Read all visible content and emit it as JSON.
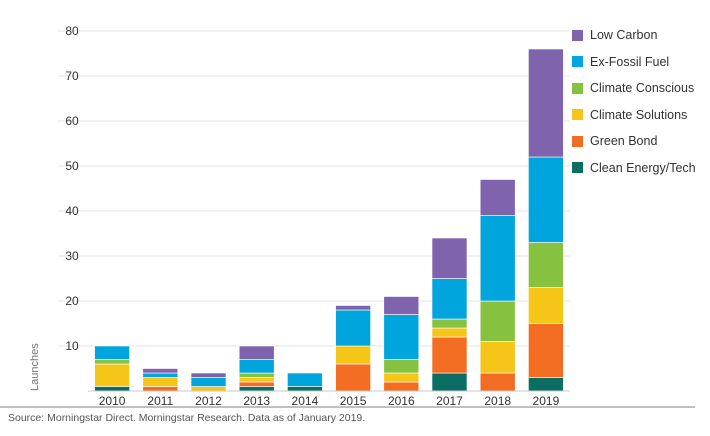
{
  "chart_data": {
    "type": "bar",
    "stacked": true,
    "categories": [
      "2010",
      "2011",
      "2012",
      "2013",
      "2014",
      "2015",
      "2016",
      "2017",
      "2018",
      "2019"
    ],
    "series": [
      {
        "name": "Clean Energy/Tech",
        "color": "#0b6e63",
        "values": [
          1,
          0,
          0,
          1,
          1,
          0,
          0,
          4,
          0,
          3
        ]
      },
      {
        "name": "Green Bond",
        "color": "#f26c21",
        "values": [
          0,
          1,
          0,
          1,
          0,
          6,
          2,
          8,
          4,
          12
        ]
      },
      {
        "name": "Climate Solutions",
        "color": "#f5c518",
        "values": [
          5,
          2,
          1,
          1,
          0,
          4,
          2,
          2,
          7,
          8
        ]
      },
      {
        "name": "Climate Conscious",
        "color": "#86c23f",
        "values": [
          1,
          0,
          0,
          1,
          0,
          0,
          3,
          2,
          9,
          10
        ]
      },
      {
        "name": "Ex-Fossil Fuel",
        "color": "#00a5de",
        "values": [
          3,
          1,
          2,
          3,
          3,
          8,
          10,
          9,
          19,
          19
        ]
      },
      {
        "name": "Low Carbon",
        "color": "#7f63ad",
        "values": [
          0,
          1,
          1,
          3,
          0,
          1,
          4,
          9,
          8,
          24
        ]
      }
    ],
    "legend_order": [
      "Low Carbon",
      "Ex-Fossil Fuel",
      "Climate Conscious",
      "Climate Solutions",
      "Green Bond",
      "Clean Energy/Tech"
    ],
    "ylabel": "Launches",
    "ylim": [
      0,
      80
    ],
    "yticks": [
      10,
      20,
      30,
      40,
      50,
      60,
      70,
      80
    ],
    "grid": true,
    "legend_position": "right"
  },
  "source_text": "Source: Morningstar Direct. Morningstar Research. Data as of January 2019."
}
